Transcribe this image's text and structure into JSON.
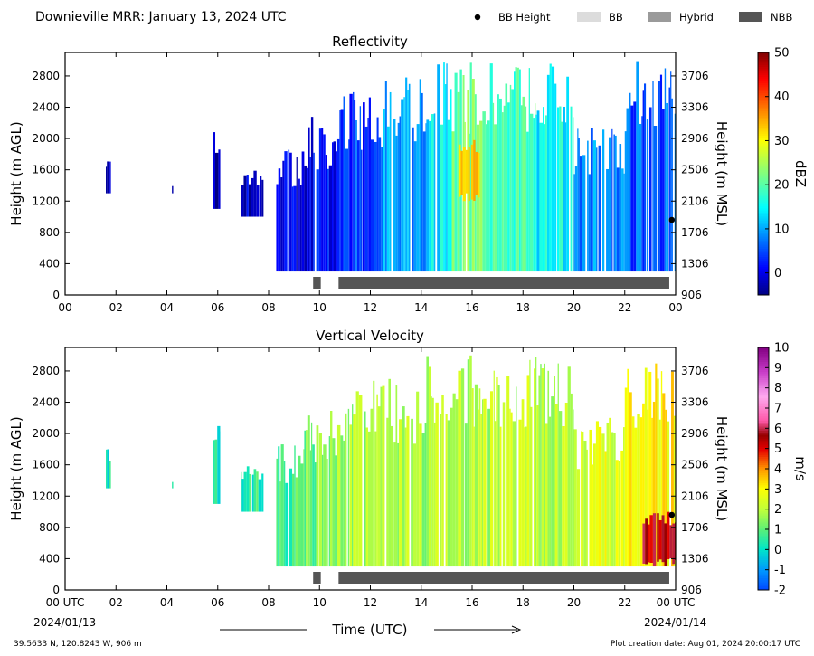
{
  "header": {
    "title": "Downieville MRR:  January 13, 2024 UTC",
    "legend": [
      {
        "name": "BB Height",
        "swatch": "dot",
        "color": "#000000"
      },
      {
        "name": "BB",
        "swatch": "box",
        "color": "#dcdcdc"
      },
      {
        "name": "Hybrid",
        "swatch": "box",
        "color": "#9a9a9a"
      },
      {
        "name": "NBB",
        "swatch": "box",
        "color": "#555555"
      }
    ]
  },
  "footer": {
    "location": "39.5633 N, 120.8243 W, 906 m",
    "creation_date": "Plot creation date: Aug 01, 2024 20:00:17 UTC",
    "start_date": "2024/01/13",
    "end_date": "2024/01/14",
    "xlabel": "Time (UTC)"
  },
  "colors": {
    "nbb_bar": "#555555",
    "bb_height_dot": "#000000"
  },
  "chart_data": [
    {
      "type": "heatmap",
      "title": "Reflectivity",
      "xlabel": "",
      "ylabel": "Height (m AGL)",
      "y2label": "Height (m MSL)",
      "x_ticks": [
        "00",
        "02",
        "04",
        "06",
        "08",
        "10",
        "12",
        "14",
        "16",
        "18",
        "20",
        "22",
        "00"
      ],
      "xlim_hours": [
        0,
        24
      ],
      "y_ticks": [
        0,
        400,
        800,
        1200,
        1600,
        2000,
        2400,
        2800
      ],
      "y2_ticks": [
        906,
        1306,
        1706,
        2106,
        2506,
        2906,
        3306,
        3706
      ],
      "ylim": [
        0,
        3100
      ],
      "colorbar": {
        "label": "dBZ",
        "range": [
          -5,
          50
        ],
        "ticks": [
          0,
          10,
          20,
          30,
          40,
          50
        ],
        "colormap": "jet"
      },
      "nbb_periods_hours": [
        [
          9.75,
          10.05
        ],
        [
          10.75,
          23.75
        ]
      ],
      "bb_height_points": [
        {
          "hour": 23.85,
          "height_agl": 960
        }
      ],
      "echo_regions": [
        {
          "start": 1.6,
          "end": 1.8,
          "bottom": 1300,
          "top": 1800,
          "dbz": -2
        },
        {
          "start": 4.2,
          "end": 4.25,
          "bottom": 1300,
          "top": 1400,
          "dbz": -2
        },
        {
          "start": 5.8,
          "end": 6.1,
          "bottom": 1100,
          "top": 2100,
          "dbz": -2
        },
        {
          "start": 6.9,
          "end": 7.8,
          "bottom": 1000,
          "top": 1600,
          "dbz": -1
        },
        {
          "start": 8.3,
          "end": 9.4,
          "bottom": 300,
          "top": 1900,
          "dbz": 0
        },
        {
          "start": 9.4,
          "end": 10.7,
          "bottom": 300,
          "top": 2300,
          "dbz": 1
        },
        {
          "start": 10.7,
          "end": 12.5,
          "bottom": 300,
          "top": 2600,
          "dbz": 4
        },
        {
          "start": 12.5,
          "end": 14.2,
          "bottom": 300,
          "top": 2800,
          "dbz": 9
        },
        {
          "start": 14.2,
          "end": 15.2,
          "bottom": 300,
          "top": 3000,
          "dbz": 14
        },
        {
          "start": 15.2,
          "end": 16.6,
          "bottom": 300,
          "top": 3000,
          "dbz": 22
        },
        {
          "start": 16.6,
          "end": 18.5,
          "bottom": 300,
          "top": 3000,
          "dbz": 19
        },
        {
          "start": 18.5,
          "end": 20.0,
          "bottom": 300,
          "top": 3000,
          "dbz": 15
        },
        {
          "start": 20.0,
          "end": 22.0,
          "bottom": 300,
          "top": 2200,
          "dbz": 8
        },
        {
          "start": 22.0,
          "end": 24.0,
          "bottom": 300,
          "top": 3000,
          "dbz": 6
        }
      ],
      "peak_region": {
        "start": 15.5,
        "end": 16.3,
        "bottom": 1200,
        "top": 2000,
        "dbz": 33
      }
    },
    {
      "type": "heatmap",
      "title": "Vertical Velocity",
      "xlabel": "Time (UTC)",
      "ylabel": "Height (m AGL)",
      "y2label": "Height (m MSL)",
      "x_ticks": [
        "00 UTC",
        "02",
        "04",
        "06",
        "08",
        "10",
        "12",
        "14",
        "16",
        "18",
        "20",
        "22",
        "00 UTC"
      ],
      "xlim_hours": [
        0,
        24
      ],
      "y_ticks": [
        0,
        400,
        800,
        1200,
        1600,
        2000,
        2400,
        2800
      ],
      "y2_ticks": [
        906,
        1306,
        1706,
        2106,
        2506,
        2906,
        3306,
        3706
      ],
      "ylim": [
        0,
        3100
      ],
      "colorbar": {
        "label": "m/s",
        "range": [
          -2,
          10
        ],
        "ticks": [
          -2,
          -1,
          0,
          1,
          2,
          3,
          4,
          5,
          6,
          7,
          8,
          9,
          10
        ],
        "colormap": "velocity"
      },
      "nbb_periods_hours": [
        [
          9.75,
          10.05
        ],
        [
          10.75,
          23.75
        ]
      ],
      "bb_height_points": [
        {
          "hour": 23.85,
          "height_agl": 960
        }
      ],
      "echo_regions": [
        {
          "start": 1.6,
          "end": 1.8,
          "bottom": 1300,
          "top": 1800,
          "ms": 0.3
        },
        {
          "start": 4.2,
          "end": 4.25,
          "bottom": 1300,
          "top": 1400,
          "ms": 0.3
        },
        {
          "start": 5.8,
          "end": 6.1,
          "bottom": 1100,
          "top": 2100,
          "ms": 0.4
        },
        {
          "start": 6.9,
          "end": 7.8,
          "bottom": 1000,
          "top": 1600,
          "ms": 0.5
        },
        {
          "start": 8.3,
          "end": 9.4,
          "bottom": 300,
          "top": 1900,
          "ms": 0.8
        },
        {
          "start": 9.4,
          "end": 10.7,
          "bottom": 300,
          "top": 2300,
          "ms": 1.2
        },
        {
          "start": 10.7,
          "end": 14.2,
          "bottom": 300,
          "top": 2700,
          "ms": 1.8
        },
        {
          "start": 14.2,
          "end": 20.0,
          "bottom": 300,
          "top": 3000,
          "ms": 2.0
        },
        {
          "start": 20.0,
          "end": 22.0,
          "bottom": 300,
          "top": 2200,
          "ms": 2.5
        },
        {
          "start": 22.0,
          "end": 24.0,
          "bottom": 300,
          "top": 3000,
          "ms": 3.0
        }
      ],
      "peak_region": {
        "start": 22.7,
        "end": 24.0,
        "bottom": 300,
        "top": 1000,
        "ms": 5.5
      }
    }
  ]
}
